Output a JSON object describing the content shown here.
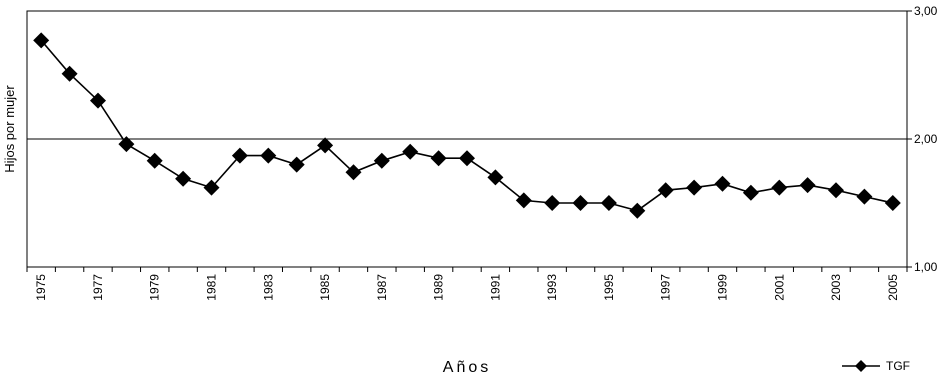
{
  "chart_data": {
    "type": "line",
    "title": "",
    "xlabel": "Años",
    "ylabel": "Hijos por mujer",
    "x": [
      1975,
      1976,
      1977,
      1978,
      1979,
      1980,
      1981,
      1982,
      1983,
      1984,
      1985,
      1986,
      1987,
      1988,
      1989,
      1990,
      1991,
      1992,
      1993,
      1994,
      1995,
      1996,
      1997,
      1998,
      1999,
      2000,
      2001,
      2002,
      2003,
      2004,
      2005
    ],
    "x_tick_labels": [
      "1975",
      "1977",
      "1979",
      "1981",
      "1983",
      "1985",
      "1987",
      "1989",
      "1991",
      "1993",
      "1995",
      "1997",
      "1999",
      "2001",
      "2003",
      "2005"
    ],
    "y_tick_labels": [
      "1,00",
      "2,00",
      "3,00"
    ],
    "y_ticks": [
      1,
      2,
      3
    ],
    "ylim": [
      1,
      3
    ],
    "y_axis_side": "right",
    "gridlines": [
      2
    ],
    "legend_position": "bottom-right",
    "series": [
      {
        "name": "TGF",
        "color": "#000000",
        "marker": "diamond",
        "values": [
          2.77,
          2.51,
          2.3,
          1.96,
          1.83,
          1.69,
          1.62,
          1.87,
          1.87,
          1.8,
          1.95,
          1.74,
          1.83,
          1.9,
          1.85,
          1.85,
          1.7,
          1.52,
          1.5,
          1.5,
          1.5,
          1.44,
          1.6,
          1.62,
          1.65,
          1.58,
          1.62,
          1.64,
          1.6,
          1.55,
          1.5
        ]
      }
    ]
  }
}
